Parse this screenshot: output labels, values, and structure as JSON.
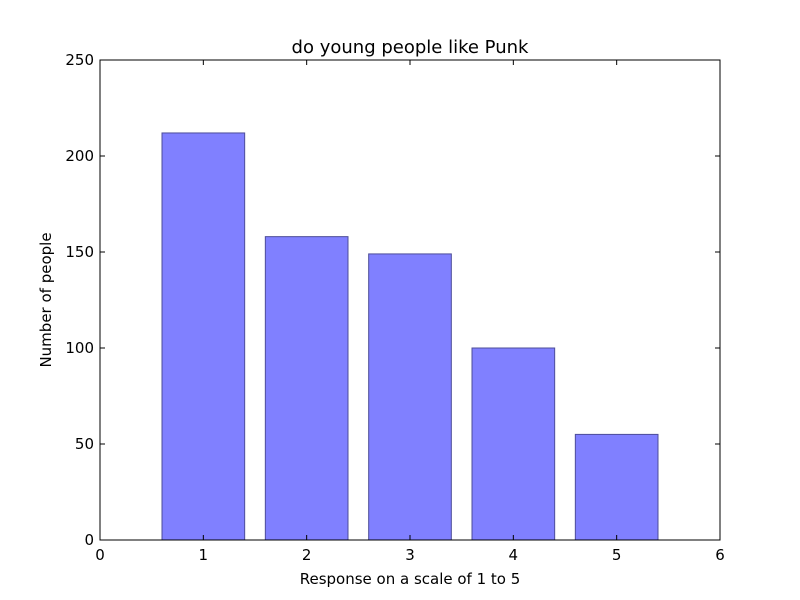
{
  "chart_data": {
    "type": "bar",
    "title": "do young people like Punk",
    "xlabel": "Response on a scale of 1 to 5",
    "ylabel": "Number of people",
    "categories": [
      1,
      2,
      3,
      4,
      5
    ],
    "values": [
      212,
      158,
      149,
      100,
      55
    ],
    "bar_width": 0.8,
    "xlim": [
      0,
      6
    ],
    "ylim": [
      0,
      250
    ],
    "xticks": [
      0,
      1,
      2,
      3,
      4,
      5,
      6
    ],
    "yticks": [
      0,
      50,
      100,
      150,
      200,
      250
    ],
    "grid": false,
    "colors": {
      "bar_fill": "#8080ff",
      "bar_edge": "#4d4d99",
      "axis": "#000000"
    }
  }
}
